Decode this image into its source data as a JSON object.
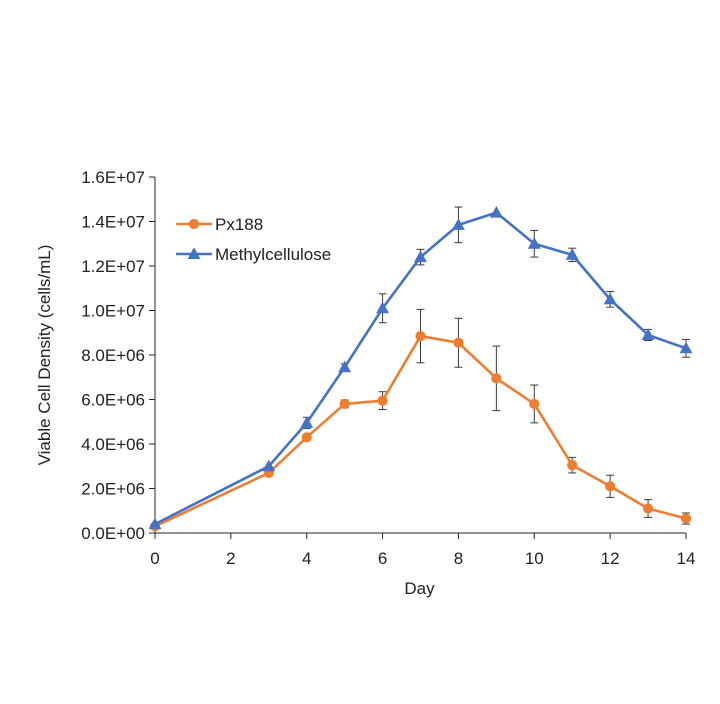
{
  "chart_data": {
    "type": "line",
    "title": "",
    "xlabel": "Day",
    "ylabel": "Viable Cell Density (cells/mL)",
    "xlim": [
      0,
      14
    ],
    "ylim": [
      0,
      16000000
    ],
    "x_ticks": [
      0,
      2,
      4,
      6,
      8,
      10,
      12,
      14
    ],
    "x_tick_labels": [
      "0",
      "2",
      "4",
      "6",
      "8",
      "10",
      "12",
      "14"
    ],
    "y_ticks": [
      0,
      2000000,
      4000000,
      6000000,
      8000000,
      10000000,
      12000000,
      14000000,
      16000000
    ],
    "y_tick_labels": [
      "0.0E+00",
      "2.0E+06",
      "4.0E+06",
      "6.0E+06",
      "8.0E+06",
      "1.0E+07",
      "1.2E+07",
      "1.4E+07",
      "1.6E+07"
    ],
    "grid": false,
    "legend_position": "top-left",
    "series": [
      {
        "name": "Px188",
        "color": "#ED7D31",
        "marker": "circle",
        "x": [
          0,
          3,
          4,
          5,
          6,
          7,
          8,
          9,
          10,
          11,
          12,
          13,
          14
        ],
        "y": [
          300000,
          2700000,
          4300000,
          5800000,
          5950000,
          8850000,
          8550000,
          6950000,
          5800000,
          3050000,
          2100000,
          1100000,
          650000
        ],
        "error": [
          0,
          0,
          0,
          180000,
          400000,
          1200000,
          1100000,
          1450000,
          850000,
          350000,
          500000,
          400000,
          250000
        ]
      },
      {
        "name": "Methylcellulose",
        "color": "#4472C4",
        "marker": "triangle",
        "x": [
          0,
          3,
          4,
          5,
          6,
          7,
          8,
          9,
          10,
          11,
          12,
          13,
          14
        ],
        "y": [
          400000,
          3000000,
          4950000,
          7450000,
          10100000,
          12400000,
          13850000,
          14400000,
          13000000,
          12500000,
          10500000,
          8900000,
          8300000
        ],
        "error": [
          0,
          0,
          250000,
          150000,
          650000,
          350000,
          800000,
          0,
          600000,
          300000,
          350000,
          250000,
          400000
        ]
      }
    ]
  }
}
